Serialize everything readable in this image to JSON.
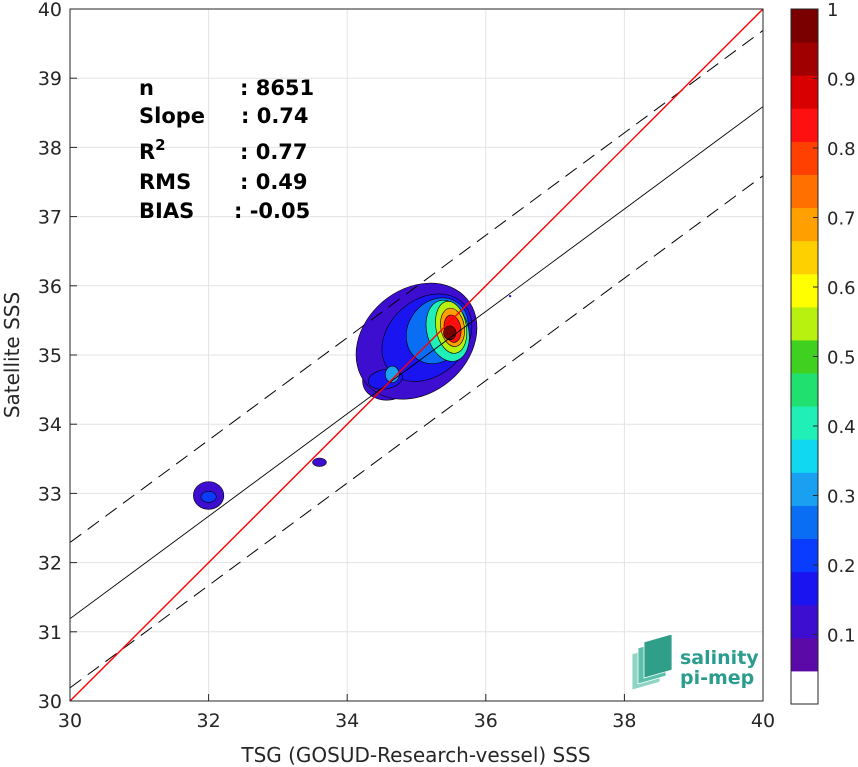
{
  "chart_data": {
    "type": "heatmap",
    "xlabel": "TSG (GOSUD-Research-vessel) SSS",
    "ylabel": "Satellite SSS",
    "xlim": [
      30,
      40
    ],
    "ylim": [
      30,
      40
    ],
    "x_ticks": [
      30,
      32,
      34,
      36,
      38,
      40
    ],
    "y_ticks": [
      30,
      31,
      32,
      33,
      34,
      35,
      36,
      37,
      38,
      39,
      40
    ],
    "grid": true,
    "stats": [
      {
        "name": "n",
        "value": ": 8651"
      },
      {
        "name": "Slope",
        "value": ": 0.74"
      },
      {
        "name": "R",
        "sup": "2",
        "value": ": 0.77"
      },
      {
        "name": "RMS",
        "value": ": 0.49"
      },
      {
        "name": "BIAS",
        "value": ": -0.05"
      }
    ],
    "lines": {
      "identity": {
        "slope": 1,
        "intercept": 0,
        "color": "#ff0000"
      },
      "fit": {
        "slope": 0.74,
        "intercept": 8.99,
        "color": "#000000"
      },
      "upper_bound": {
        "slope": 0.74,
        "intercept": 10.09,
        "style": "dashed"
      },
      "lower_bound": {
        "slope": 0.74,
        "intercept": 7.99,
        "style": "dashed"
      }
    },
    "density_clusters": [
      {
        "x": 35.5,
        "y": 35.3,
        "peak": 1.0
      },
      {
        "x": 34.6,
        "y": 34.7,
        "peak": 0.3
      },
      {
        "x": 32.0,
        "y": 32.95,
        "peak": 0.2
      },
      {
        "x": 33.6,
        "y": 33.45,
        "peak": 0.15
      }
    ],
    "colorbar": {
      "range": [
        0,
        1
      ],
      "ticks": [
        "0.1",
        "0.2",
        "0.3",
        "0.4",
        "0.5",
        "0.6",
        "0.7",
        "0.8",
        "0.9",
        "1"
      ],
      "colors": [
        "#ffffff",
        "#5b0aa8",
        "#3d0ed0",
        "#1a14f0",
        "#0a3cff",
        "#0a6ef5",
        "#1aa0f0",
        "#10d8f0",
        "#20f0b8",
        "#20e070",
        "#40d020",
        "#b8f010",
        "#ffff00",
        "#ffd000",
        "#ffa000",
        "#ff7000",
        "#ff4000",
        "#ff1010",
        "#d80000",
        "#a00000",
        "#7a0000"
      ]
    }
  },
  "logo": {
    "line1": "salinity",
    "line2": "pi-mep"
  }
}
